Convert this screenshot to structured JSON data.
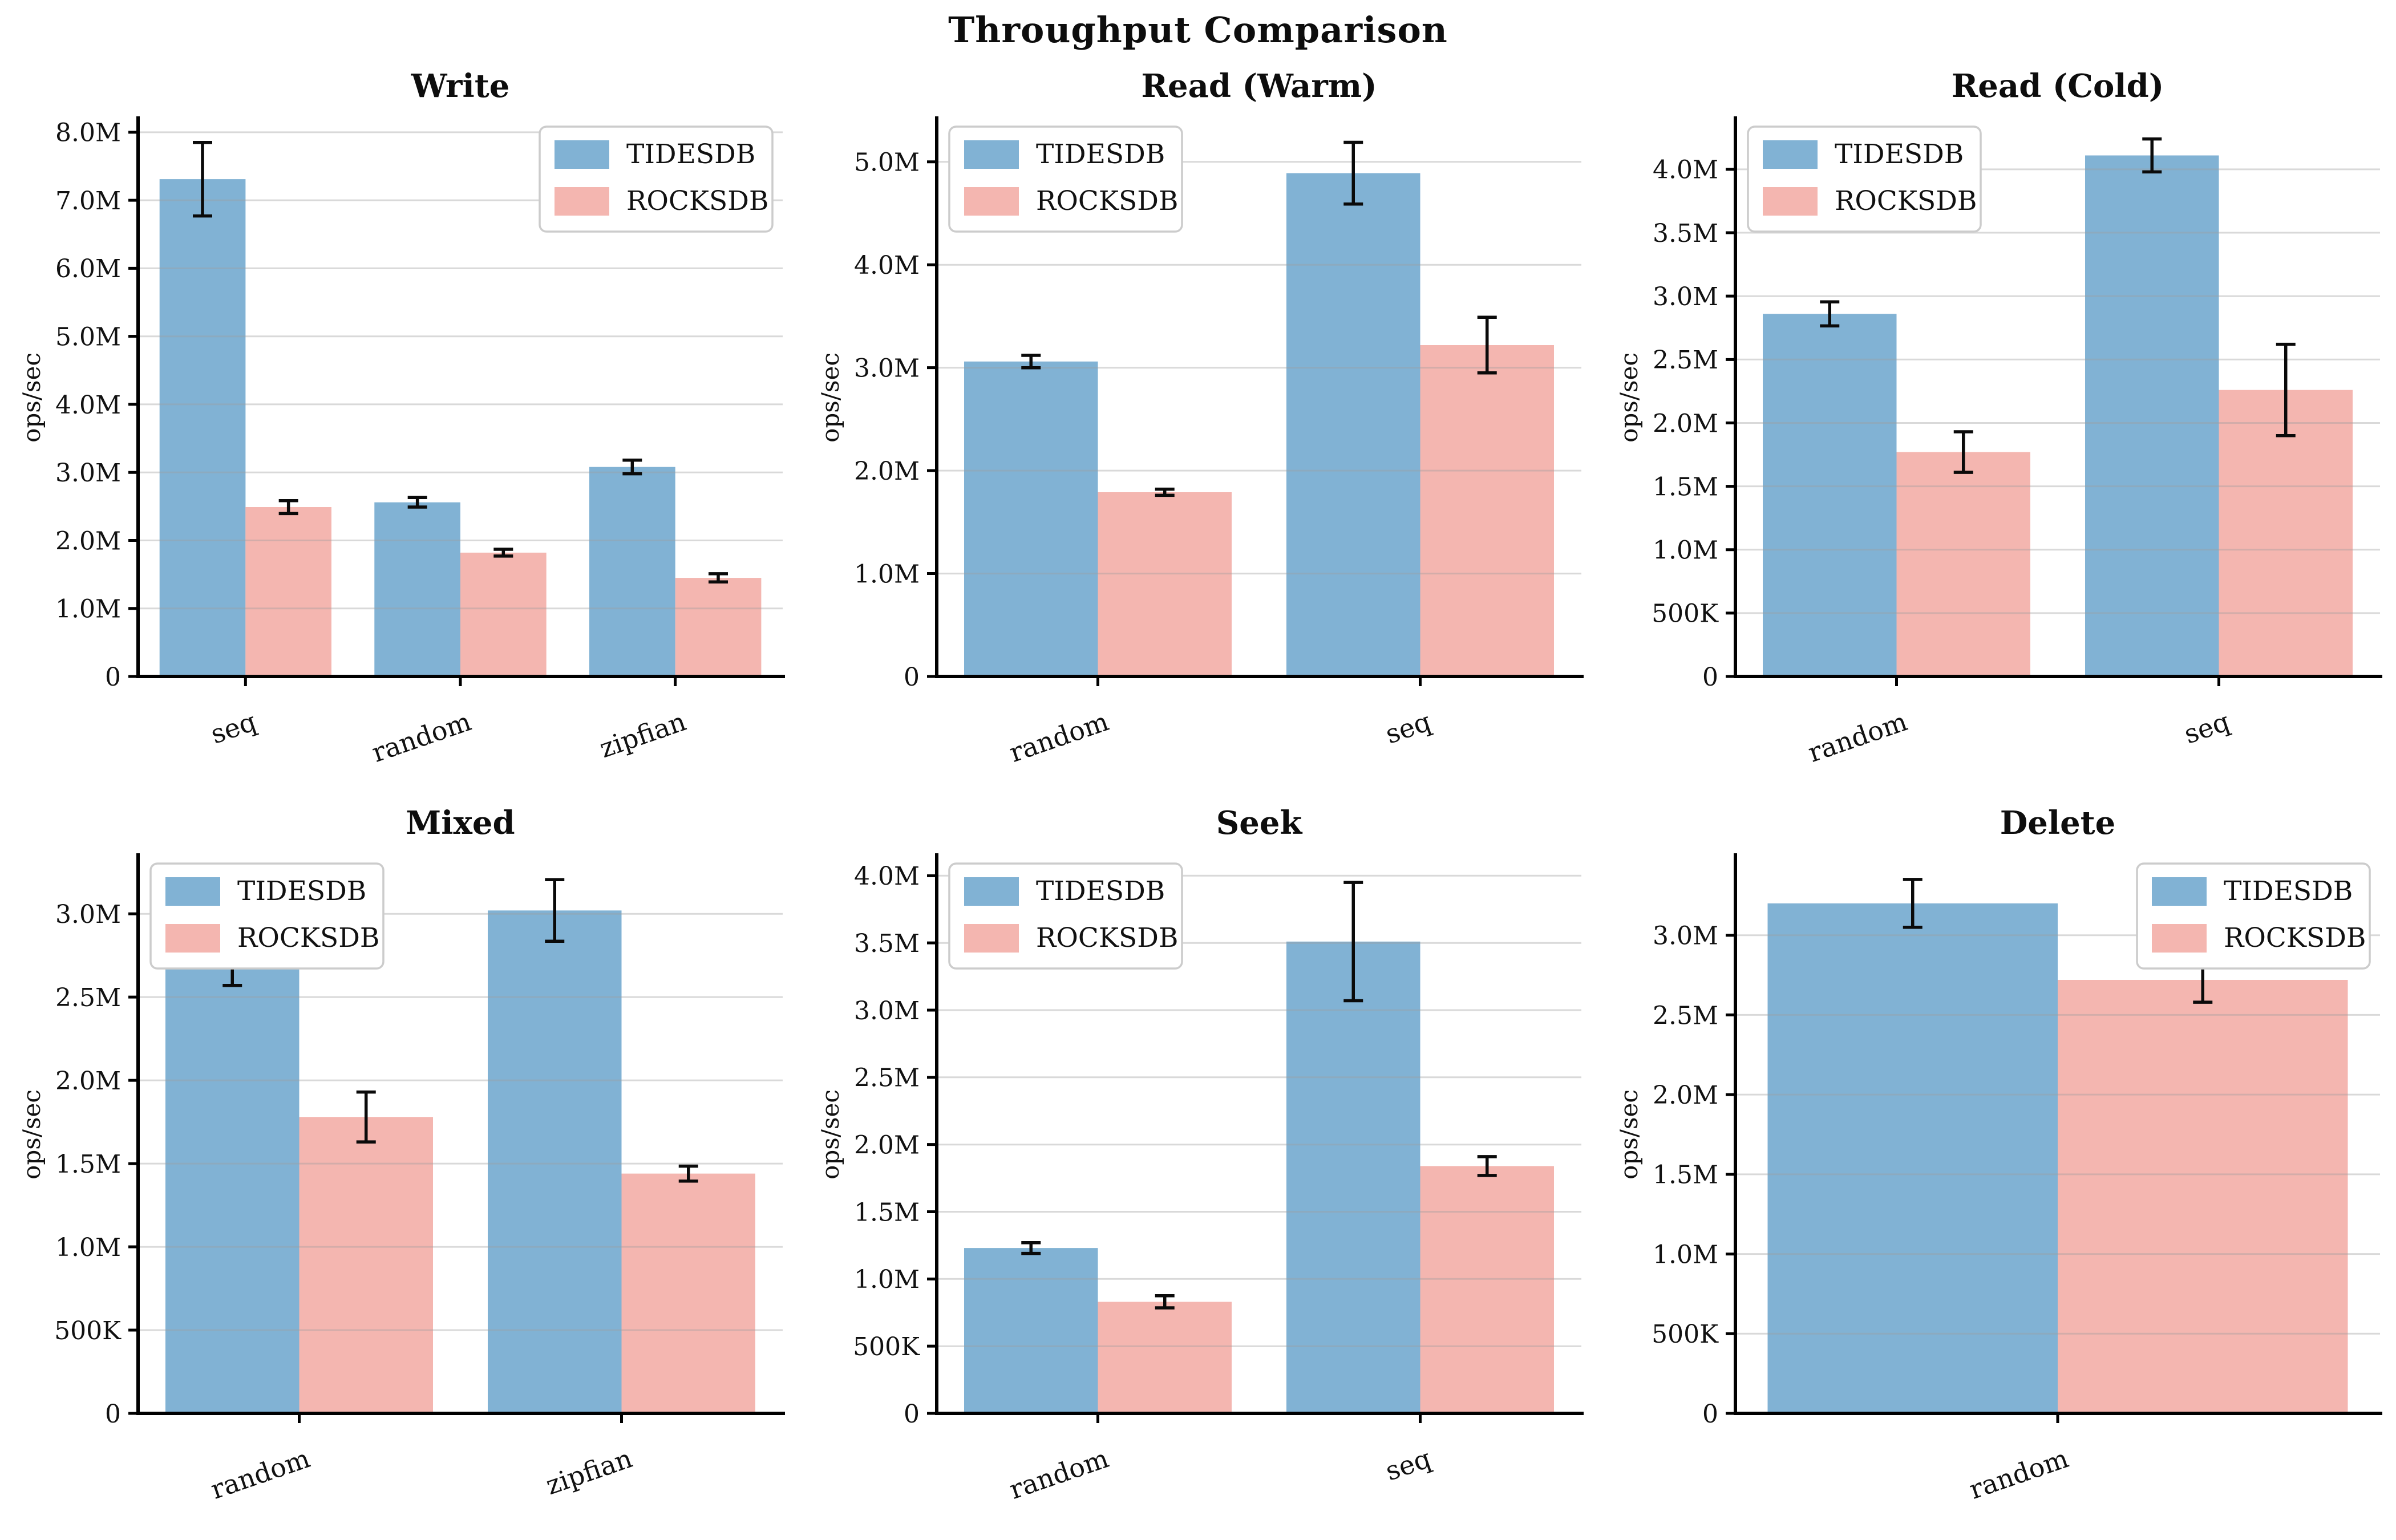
{
  "figure": {
    "title": "Throughput Comparison",
    "background": "#ffffff"
  },
  "colors": {
    "tidesdb": "#81B2D4",
    "rocksdb": "#F4B6B0",
    "grid": "#9e9e9e",
    "grid_opacity": 0.38,
    "spine": "#000000",
    "error_bar": "#0a0a0a",
    "legend_border": "#cccccc",
    "legend_bg": "#ffffff",
    "text": "#111111"
  },
  "legend_labels": [
    "TIDESDB",
    "ROCKSDB"
  ],
  "chart_data": [
    {
      "type": "bar",
      "title": "Write",
      "ylabel": "ops/sec",
      "categories": [
        "seq",
        "random",
        "zipfian"
      ],
      "series": [
        {
          "name": "TIDESDB",
          "values": [
            7310000,
            2560000,
            3080000
          ],
          "errors": [
            540000,
            70000,
            100000
          ]
        },
        {
          "name": "ROCKSDB",
          "values": [
            2490000,
            1820000,
            1450000
          ],
          "errors": [
            95000,
            50000,
            60000
          ]
        }
      ],
      "ytick_step": 1000000,
      "ytick_labels": [
        "0",
        "1.0M",
        "2.0M",
        "3.0M",
        "4.0M",
        "5.0M",
        "6.0M",
        "7.0M",
        "8.0M"
      ],
      "ylim": [
        0,
        8200000
      ],
      "legend_pos": "right",
      "grid": true
    },
    {
      "type": "bar",
      "title": "Read (Warm)",
      "ylabel": "ops/sec",
      "categories": [
        "random",
        "seq"
      ],
      "series": [
        {
          "name": "TIDESDB",
          "values": [
            3060000,
            4890000
          ],
          "errors": [
            60000,
            300000
          ]
        },
        {
          "name": "ROCKSDB",
          "values": [
            1790000,
            3220000
          ],
          "errors": [
            30000,
            270000
          ]
        }
      ],
      "ytick_step": 1000000,
      "ytick_labels": [
        "0",
        "1.0M",
        "2.0M",
        "3.0M",
        "4.0M",
        "5.0M"
      ],
      "ylim": [
        0,
        5420000
      ],
      "legend_pos": "left",
      "grid": true
    },
    {
      "type": "bar",
      "title": "Read (Cold)",
      "ylabel": "ops/sec",
      "categories": [
        "random",
        "seq"
      ],
      "series": [
        {
          "name": "TIDESDB",
          "values": [
            2860000,
            4110000
          ],
          "errors": [
            95000,
            130000
          ]
        },
        {
          "name": "ROCKSDB",
          "values": [
            1770000,
            2260000
          ],
          "errors": [
            160000,
            360000
          ]
        }
      ],
      "ytick_step": 500000,
      "ytick_labels": [
        "0",
        "500K",
        "1.0M",
        "1.5M",
        "2.0M",
        "2.5M",
        "3.0M",
        "3.5M",
        "4.0M"
      ],
      "ylim": [
        0,
        4400000
      ],
      "legend_pos": "left",
      "grid": true
    },
    {
      "type": "bar",
      "title": "Mixed",
      "ylabel": "ops/sec",
      "categories": [
        "random",
        "zipfian"
      ],
      "series": [
        {
          "name": "TIDESDB",
          "values": [
            2690000,
            3020000
          ],
          "errors": [
            120000,
            185000
          ]
        },
        {
          "name": "ROCKSDB",
          "values": [
            1780000,
            1440000
          ],
          "errors": [
            150000,
            45000
          ]
        }
      ],
      "ytick_step": 500000,
      "ytick_labels": [
        "0",
        "500K",
        "1.0M",
        "1.5M",
        "2.0M",
        "2.5M",
        "3.0M"
      ],
      "ylim": [
        0,
        3350000
      ],
      "legend_pos": "left",
      "grid": true
    },
    {
      "type": "bar",
      "title": "Seek",
      "ylabel": "ops/sec",
      "categories": [
        "random",
        "seq"
      ],
      "series": [
        {
          "name": "TIDESDB",
          "values": [
            1230000,
            3510000
          ],
          "errors": [
            40000,
            440000
          ]
        },
        {
          "name": "ROCKSDB",
          "values": [
            830000,
            1840000
          ],
          "errors": [
            45000,
            70000
          ]
        }
      ],
      "ytick_step": 500000,
      "ytick_labels": [
        "0",
        "500K",
        "1.0M",
        "1.5M",
        "2.0M",
        "2.5M",
        "3.0M",
        "3.5M",
        "4.0M"
      ],
      "ylim": [
        0,
        4150000
      ],
      "legend_pos": "left",
      "grid": true
    },
    {
      "type": "bar",
      "title": "Delete",
      "ylabel": "ops/sec",
      "categories": [
        "random"
      ],
      "series": [
        {
          "name": "TIDESDB",
          "values": [
            3200000
          ],
          "errors": [
            150000
          ]
        },
        {
          "name": "ROCKSDB",
          "values": [
            2720000
          ],
          "errors": [
            140000
          ]
        }
      ],
      "ytick_step": 500000,
      "ytick_labels": [
        "0",
        "500K",
        "1.0M",
        "1.5M",
        "2.0M",
        "2.5M",
        "3.0M"
      ],
      "ylim": [
        0,
        3500000
      ],
      "legend_pos": "right",
      "grid": true
    }
  ]
}
